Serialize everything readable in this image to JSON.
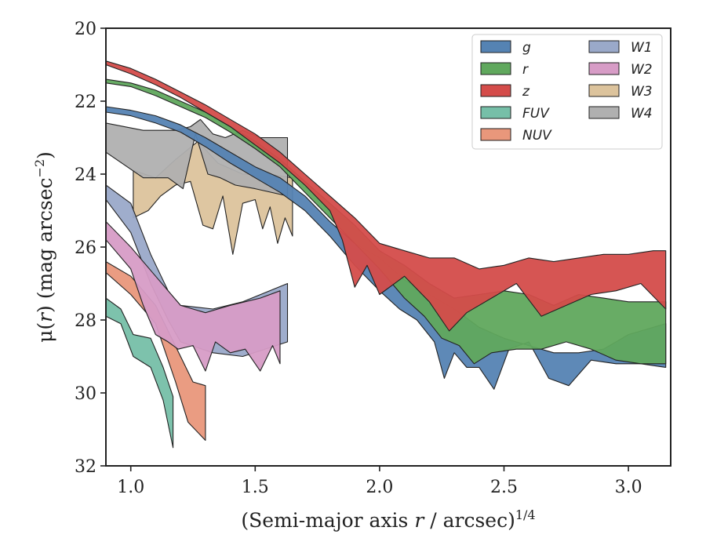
{
  "chart_data": {
    "type": "area",
    "xlabel_prefix": "(Semi-major axis ",
    "xlabel_var": "r",
    "xlabel_mid": " / arcsec)",
    "xlabel_sup": "1/4",
    "ylabel_prefix": "μ(",
    "ylabel_var": "r",
    "ylabel_mid": ") (mag arcsec",
    "ylabel_sup": "−2",
    "ylabel_suffix": ")",
    "xlim": [
      0.9,
      3.17
    ],
    "ylim": [
      32,
      20
    ],
    "y_inverted": true,
    "xticks": [
      1.0,
      1.5,
      2.0,
      2.5,
      3.0
    ],
    "xtick_labels": [
      "1.0",
      "1.5",
      "2.0",
      "2.5",
      "3.0"
    ],
    "yticks": [
      20,
      22,
      24,
      26,
      28,
      30,
      32
    ],
    "ytick_labels": [
      "20",
      "22",
      "24",
      "26",
      "28",
      "30",
      "32"
    ],
    "grid": false,
    "legend_position": "top-right",
    "legend_columns": 2,
    "series": [
      {
        "name": "W3",
        "color": "#dcc39c",
        "upper": [
          [
            1.01,
            23.9
          ],
          [
            1.1,
            24.1
          ],
          [
            1.18,
            23.6
          ],
          [
            1.27,
            23.1
          ],
          [
            1.35,
            23.7
          ],
          [
            1.45,
            24.0
          ],
          [
            1.55,
            24.0
          ],
          [
            1.65,
            24.1
          ]
        ],
        "lower": [
          [
            1.01,
            25.2
          ],
          [
            1.07,
            25.0
          ],
          [
            1.12,
            24.6
          ],
          [
            1.18,
            24.3
          ],
          [
            1.24,
            24.2
          ],
          [
            1.29,
            25.4
          ],
          [
            1.33,
            25.5
          ],
          [
            1.37,
            24.6
          ],
          [
            1.41,
            26.2
          ],
          [
            1.45,
            24.8
          ],
          [
            1.5,
            24.7
          ],
          [
            1.53,
            25.5
          ],
          [
            1.56,
            24.9
          ],
          [
            1.59,
            25.9
          ],
          [
            1.62,
            25.2
          ],
          [
            1.65,
            25.7
          ]
        ]
      },
      {
        "name": "W4",
        "color": "#b0b0b0",
        "upper": [
          [
            0.9,
            22.6
          ],
          [
            1.05,
            22.8
          ],
          [
            1.18,
            22.8
          ],
          [
            1.24,
            22.7
          ],
          [
            1.28,
            22.5
          ],
          [
            1.33,
            22.9
          ],
          [
            1.38,
            23.0
          ],
          [
            1.45,
            22.8
          ],
          [
            1.52,
            23.0
          ],
          [
            1.63,
            23.0
          ]
        ],
        "lower": [
          [
            0.9,
            23.4
          ],
          [
            1.05,
            24.1
          ],
          [
            1.15,
            24.1
          ],
          [
            1.21,
            24.4
          ],
          [
            1.26,
            22.9
          ],
          [
            1.31,
            24.0
          ],
          [
            1.36,
            24.1
          ],
          [
            1.42,
            24.3
          ],
          [
            1.5,
            24.4
          ],
          [
            1.63,
            24.6
          ]
        ]
      },
      {
        "name": "FUV",
        "color": "#76bfa8",
        "upper": [
          [
            0.9,
            27.4
          ],
          [
            0.96,
            27.7
          ],
          [
            1.01,
            28.4
          ],
          [
            1.08,
            28.5
          ],
          [
            1.13,
            29.3
          ],
          [
            1.17,
            30.1
          ]
        ],
        "lower": [
          [
            0.9,
            27.9
          ],
          [
            0.96,
            28.1
          ],
          [
            1.01,
            29.0
          ],
          [
            1.08,
            29.3
          ],
          [
            1.13,
            30.2
          ],
          [
            1.17,
            31.5
          ]
        ]
      },
      {
        "name": "NUV",
        "color": "#e9977b",
        "upper": [
          [
            0.9,
            26.4
          ],
          [
            1.0,
            26.8
          ],
          [
            1.1,
            27.6
          ],
          [
            1.2,
            29.0
          ],
          [
            1.25,
            29.7
          ],
          [
            1.3,
            29.8
          ]
        ],
        "lower": [
          [
            0.9,
            26.7
          ],
          [
            1.0,
            27.3
          ],
          [
            1.1,
            28.1
          ],
          [
            1.18,
            29.7
          ],
          [
            1.23,
            30.8
          ],
          [
            1.3,
            31.3
          ]
        ]
      },
      {
        "name": "W1",
        "color": "#9aa9c9",
        "upper": [
          [
            0.9,
            24.3
          ],
          [
            1.0,
            24.8
          ],
          [
            1.08,
            26.2
          ],
          [
            1.15,
            27.2
          ],
          [
            1.2,
            27.6
          ],
          [
            1.33,
            27.7
          ],
          [
            1.45,
            27.5
          ],
          [
            1.63,
            27.0
          ]
        ],
        "lower": [
          [
            0.9,
            24.7
          ],
          [
            1.0,
            25.6
          ],
          [
            1.08,
            27.0
          ],
          [
            1.15,
            28.0
          ],
          [
            1.2,
            28.6
          ],
          [
            1.33,
            28.9
          ],
          [
            1.45,
            29.0
          ],
          [
            1.63,
            28.6
          ]
        ]
      },
      {
        "name": "W2",
        "color": "#d79cc6",
        "upper": [
          [
            0.9,
            25.3
          ],
          [
            1.0,
            26.0
          ],
          [
            1.1,
            26.8
          ],
          [
            1.2,
            27.6
          ],
          [
            1.3,
            27.8
          ],
          [
            1.4,
            27.6
          ],
          [
            1.52,
            27.4
          ],
          [
            1.6,
            27.2
          ]
        ],
        "lower": [
          [
            0.9,
            25.8
          ],
          [
            1.0,
            26.6
          ],
          [
            1.05,
            27.6
          ],
          [
            1.1,
            28.4
          ],
          [
            1.15,
            28.6
          ],
          [
            1.19,
            28.8
          ],
          [
            1.25,
            28.7
          ],
          [
            1.3,
            29.4
          ],
          [
            1.34,
            28.6
          ],
          [
            1.4,
            28.9
          ],
          [
            1.46,
            28.8
          ],
          [
            1.52,
            29.4
          ],
          [
            1.57,
            28.7
          ],
          [
            1.6,
            29.2
          ]
        ]
      },
      {
        "name": "g",
        "color": "#5583b3",
        "upper": [
          [
            0.9,
            22.15
          ],
          [
            1.0,
            22.25
          ],
          [
            1.1,
            22.4
          ],
          [
            1.2,
            22.65
          ],
          [
            1.3,
            23.0
          ],
          [
            1.4,
            23.4
          ],
          [
            1.5,
            23.8
          ],
          [
            1.6,
            24.1
          ],
          [
            1.7,
            24.6
          ],
          [
            1.8,
            25.3
          ],
          [
            1.9,
            25.9
          ],
          [
            2.0,
            26.3
          ],
          [
            2.1,
            26.9
          ],
          [
            2.2,
            27.3
          ],
          [
            2.3,
            27.7
          ],
          [
            2.4,
            28.2
          ],
          [
            2.5,
            28.5
          ],
          [
            2.6,
            28.7
          ],
          [
            2.7,
            28.9
          ],
          [
            2.8,
            28.9
          ],
          [
            2.9,
            28.8
          ],
          [
            3.0,
            28.4
          ],
          [
            3.1,
            28.2
          ],
          [
            3.15,
            28.1
          ]
        ],
        "lower": [
          [
            0.9,
            22.3
          ],
          [
            1.0,
            22.4
          ],
          [
            1.1,
            22.6
          ],
          [
            1.2,
            22.85
          ],
          [
            1.3,
            23.25
          ],
          [
            1.4,
            23.7
          ],
          [
            1.5,
            24.1
          ],
          [
            1.6,
            24.5
          ],
          [
            1.7,
            25.0
          ],
          [
            1.8,
            25.7
          ],
          [
            1.9,
            26.5
          ],
          [
            2.0,
            27.2
          ],
          [
            2.08,
            27.7
          ],
          [
            2.15,
            28.0
          ],
          [
            2.22,
            28.6
          ],
          [
            2.26,
            29.6
          ],
          [
            2.3,
            28.9
          ],
          [
            2.35,
            29.3
          ],
          [
            2.4,
            29.3
          ],
          [
            2.46,
            29.9
          ],
          [
            2.52,
            28.8
          ],
          [
            2.6,
            28.6
          ],
          [
            2.68,
            29.6
          ],
          [
            2.76,
            29.8
          ],
          [
            2.85,
            29.1
          ],
          [
            2.95,
            29.2
          ],
          [
            3.05,
            29.2
          ],
          [
            3.15,
            29.3
          ]
        ]
      },
      {
        "name": "r",
        "color": "#60a85d",
        "upper": [
          [
            0.9,
            21.4
          ],
          [
            1.0,
            21.5
          ],
          [
            1.1,
            21.7
          ],
          [
            1.2,
            22.0
          ],
          [
            1.3,
            22.3
          ],
          [
            1.4,
            22.7
          ],
          [
            1.5,
            23.1
          ],
          [
            1.6,
            23.6
          ],
          [
            1.7,
            24.2
          ],
          [
            1.8,
            24.8
          ],
          [
            1.9,
            25.4
          ],
          [
            2.0,
            26.1
          ],
          [
            2.1,
            26.5
          ],
          [
            2.2,
            27.0
          ],
          [
            2.3,
            27.4
          ],
          [
            2.4,
            27.3
          ],
          [
            2.5,
            27.2
          ],
          [
            2.6,
            27.3
          ],
          [
            2.7,
            27.6
          ],
          [
            2.8,
            27.3
          ],
          [
            2.9,
            27.4
          ],
          [
            3.0,
            27.5
          ],
          [
            3.1,
            27.5
          ],
          [
            3.15,
            27.5
          ]
        ],
        "lower": [
          [
            0.9,
            21.5
          ],
          [
            1.0,
            21.6
          ],
          [
            1.1,
            21.85
          ],
          [
            1.2,
            22.15
          ],
          [
            1.3,
            22.45
          ],
          [
            1.4,
            22.85
          ],
          [
            1.5,
            23.3
          ],
          [
            1.6,
            23.8
          ],
          [
            1.7,
            24.5
          ],
          [
            1.8,
            25.2
          ],
          [
            1.9,
            25.9
          ],
          [
            2.0,
            26.6
          ],
          [
            2.1,
            27.4
          ],
          [
            2.18,
            27.9
          ],
          [
            2.25,
            28.5
          ],
          [
            2.32,
            28.7
          ],
          [
            2.38,
            29.2
          ],
          [
            2.45,
            28.9
          ],
          [
            2.55,
            28.8
          ],
          [
            2.65,
            28.8
          ],
          [
            2.75,
            28.6
          ],
          [
            2.85,
            28.8
          ],
          [
            2.95,
            29.1
          ],
          [
            3.05,
            29.2
          ],
          [
            3.15,
            29.2
          ]
        ]
      },
      {
        "name": "z",
        "color": "#d44c4a",
        "upper": [
          [
            0.9,
            20.9
          ],
          [
            1.0,
            21.1
          ],
          [
            1.1,
            21.4
          ],
          [
            1.2,
            21.75
          ],
          [
            1.3,
            22.1
          ],
          [
            1.4,
            22.5
          ],
          [
            1.5,
            22.9
          ],
          [
            1.6,
            23.4
          ],
          [
            1.7,
            24.0
          ],
          [
            1.8,
            24.6
          ],
          [
            1.9,
            25.2
          ],
          [
            2.0,
            25.9
          ],
          [
            2.1,
            26.1
          ],
          [
            2.2,
            26.3
          ],
          [
            2.3,
            26.3
          ],
          [
            2.4,
            26.6
          ],
          [
            2.5,
            26.5
          ],
          [
            2.6,
            26.3
          ],
          [
            2.7,
            26.4
          ],
          [
            2.8,
            26.3
          ],
          [
            2.9,
            26.2
          ],
          [
            3.0,
            26.2
          ],
          [
            3.1,
            26.1
          ],
          [
            3.15,
            26.1
          ]
        ],
        "lower": [
          [
            0.9,
            21.0
          ],
          [
            1.0,
            21.25
          ],
          [
            1.1,
            21.55
          ],
          [
            1.2,
            21.9
          ],
          [
            1.3,
            22.3
          ],
          [
            1.4,
            22.7
          ],
          [
            1.5,
            23.2
          ],
          [
            1.6,
            23.7
          ],
          [
            1.7,
            24.3
          ],
          [
            1.8,
            25.0
          ],
          [
            1.85,
            25.8
          ],
          [
            1.9,
            27.1
          ],
          [
            1.95,
            26.5
          ],
          [
            2.0,
            27.3
          ],
          [
            2.1,
            26.8
          ],
          [
            2.2,
            27.5
          ],
          [
            2.28,
            28.3
          ],
          [
            2.35,
            27.8
          ],
          [
            2.45,
            27.4
          ],
          [
            2.55,
            27.0
          ],
          [
            2.65,
            27.9
          ],
          [
            2.75,
            27.6
          ],
          [
            2.85,
            27.3
          ],
          [
            2.95,
            27.2
          ],
          [
            3.05,
            27.0
          ],
          [
            3.15,
            27.7
          ]
        ]
      }
    ],
    "legend": [
      {
        "name": "g",
        "color": "#5583b3"
      },
      {
        "name": "r",
        "color": "#60a85d"
      },
      {
        "name": "z",
        "color": "#d44c4a"
      },
      {
        "name": "FUV",
        "color": "#76bfa8"
      },
      {
        "name": "NUV",
        "color": "#e9977b"
      },
      {
        "name": "W1",
        "color": "#9aa9c9"
      },
      {
        "name": "W2",
        "color": "#d79cc6"
      },
      {
        "name": "W3",
        "color": "#dcc39c"
      },
      {
        "name": "W4",
        "color": "#b0b0b0"
      }
    ]
  }
}
